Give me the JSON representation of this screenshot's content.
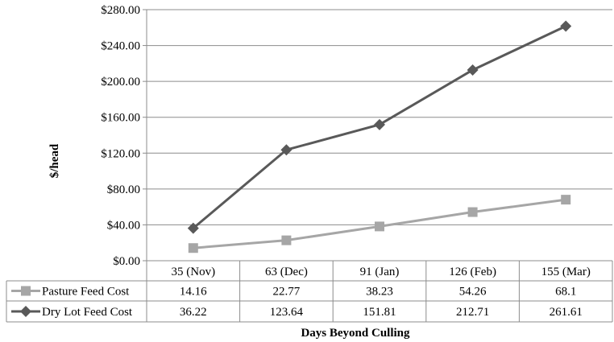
{
  "chart_data": {
    "type": "line",
    "categories": [
      "35 (Nov)",
      "63 (Dec)",
      "91 (Jan)",
      "126 (Feb)",
      "155 (Mar)"
    ],
    "series": [
      {
        "name": "Pasture Feed Cost",
        "values": [
          14.16,
          22.77,
          38.23,
          54.26,
          68.1
        ],
        "color": "#a6a6a6",
        "marker": "square"
      },
      {
        "name": "Dry Lot Feed Cost",
        "values": [
          36.22,
          123.64,
          151.81,
          212.71,
          261.61
        ],
        "color": "#595959",
        "marker": "diamond"
      }
    ],
    "data_table": {
      "rows": [
        {
          "label": "Pasture Feed Cost",
          "cells": [
            "14.16",
            "22.77",
            "38.23",
            "54.26",
            "68.1"
          ]
        },
        {
          "label": "Dry Lot Feed Cost",
          "cells": [
            "36.22",
            "123.64",
            "151.81",
            "212.71",
            "261.61"
          ]
        }
      ]
    },
    "ylabel": "$/head",
    "xlabel": "Days Beyond Culling",
    "ylim": [
      0,
      280
    ],
    "yticks": [
      0,
      40,
      80,
      120,
      160,
      200,
      240,
      280
    ],
    "ytick_labels": [
      "$0.00",
      "$40.00",
      "$80.00",
      "$120.00",
      "$160.00",
      "$200.00",
      "$240.00",
      "$280.00"
    ],
    "grid": true,
    "legend": "data-table"
  }
}
